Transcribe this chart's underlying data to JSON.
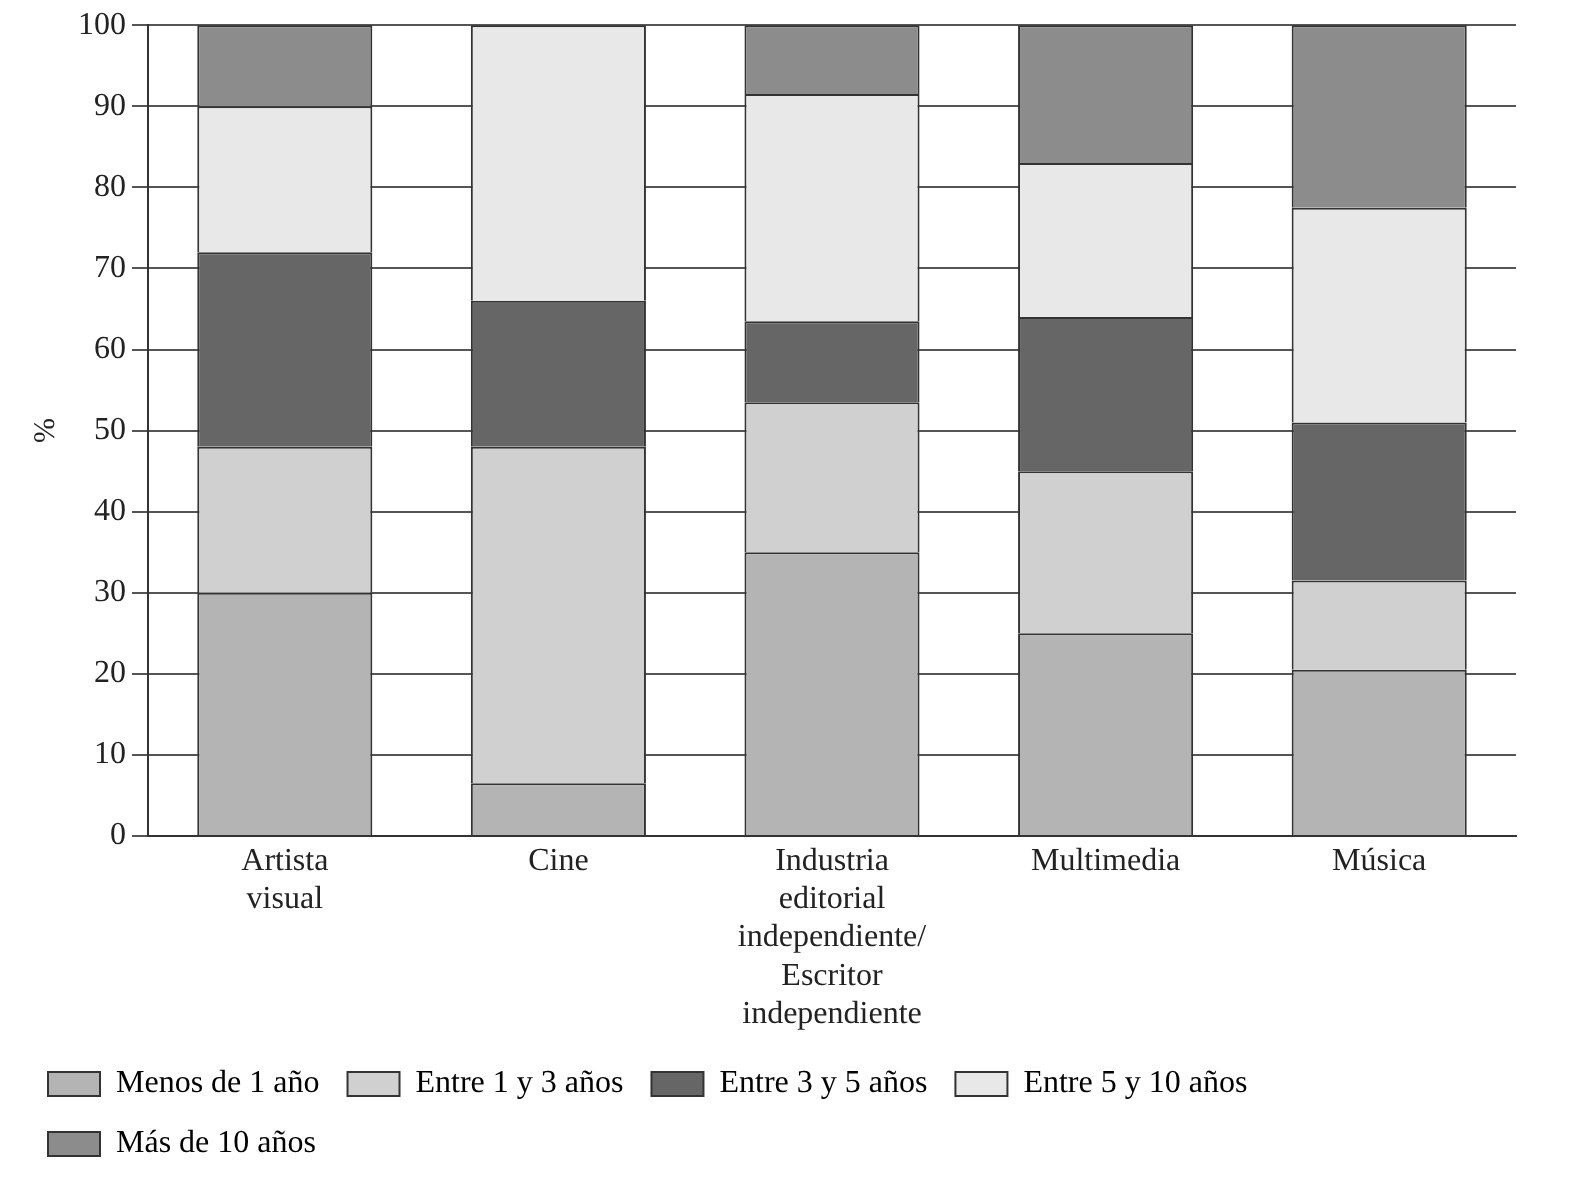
{
  "chart_data": {
    "type": "bar",
    "ylabel": "%",
    "categories": [
      "Artista visual",
      "Cine",
      "Industria editorial independiente/ Escritor independiente",
      "Multimedia",
      "Música"
    ],
    "stacked": true,
    "ylim": [
      0,
      100
    ],
    "yticks": [
      0,
      10,
      20,
      30,
      40,
      50,
      60,
      70,
      80,
      90,
      100
    ],
    "grid": "y",
    "legend": "bottom",
    "series": [
      {
        "name": "Menos de 1 año",
        "color": "#b4b4b4",
        "values": [
          30,
          6.5,
          35,
          25,
          20.5
        ]
      },
      {
        "name": "Entre 1 y 3 años",
        "color": "#d0d0d0",
        "values": [
          18,
          41.5,
          18.5,
          20,
          11
        ]
      },
      {
        "name": "Entre 3 y 5 años",
        "color": "#666666",
        "values": [
          24,
          18,
          10,
          19,
          19.5
        ]
      },
      {
        "name": "Entre 5 y 10 años",
        "color": "#e8e8e8",
        "values": [
          18,
          34,
          28,
          19,
          26.5
        ]
      },
      {
        "name": "Más de 10 años",
        "color": "#8c8c8c",
        "values": [
          10,
          0,
          8.5,
          17,
          22.5
        ]
      }
    ]
  }
}
